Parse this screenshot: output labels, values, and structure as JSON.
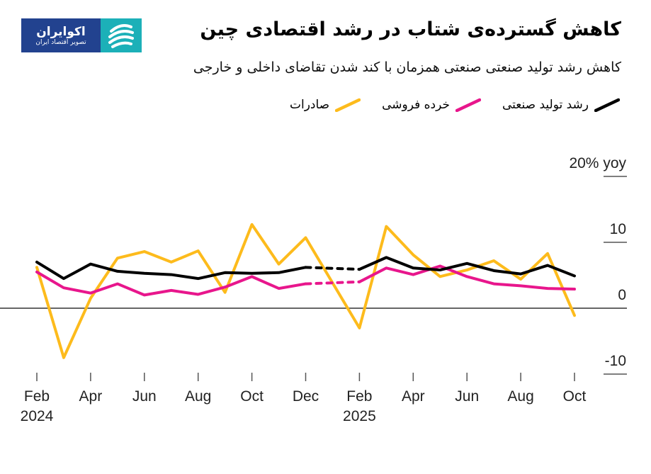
{
  "header": {
    "title": "کاهش گسترده‌ی شتاب در رشد اقتصادی چین",
    "subtitle": "کاهش رشد تولید صنعتی صنعتی همزمان با کند شدن تقاضای داخلی و خارجی"
  },
  "logo": {
    "name": "اکوایران",
    "tagline": "تصویر اقتصاد ایران"
  },
  "chart_data": {
    "type": "line",
    "ylabel": "20% yoy",
    "ylim": [
      -10,
      20
    ],
    "yticks": [
      {
        "v": 20,
        "label": "20% yoy"
      },
      {
        "v": 10,
        "label": "10"
      },
      {
        "v": 0,
        "label": "0"
      },
      {
        "v": -10,
        "label": "-10"
      }
    ],
    "x": [
      "2024-02",
      "2024-03",
      "2024-04",
      "2024-05",
      "2024-06",
      "2024-07",
      "2024-08",
      "2024-09",
      "2024-10",
      "2024-11",
      "2024-12",
      "2025-02",
      "2025-03",
      "2025-04",
      "2025-05",
      "2025-06",
      "2025-07",
      "2025-08",
      "2025-09",
      "2025-10"
    ],
    "xticks": [
      {
        "m": "2024-02",
        "label": "Feb",
        "year": "2024"
      },
      {
        "m": "2024-04",
        "label": "Apr"
      },
      {
        "m": "2024-06",
        "label": "Jun"
      },
      {
        "m": "2024-08",
        "label": "Aug"
      },
      {
        "m": "2024-10",
        "label": "Oct"
      },
      {
        "m": "2024-12",
        "label": "Dec"
      },
      {
        "m": "2025-02",
        "label": "Feb",
        "year": "2025"
      },
      {
        "m": "2025-04",
        "label": "Apr"
      },
      {
        "m": "2025-06",
        "label": "Jun"
      },
      {
        "m": "2025-08",
        "label": "Aug"
      },
      {
        "m": "2025-10",
        "label": "Oct"
      }
    ],
    "dashed_between": [
      "2024-12",
      "2025-02"
    ],
    "series": [
      {
        "name": "رشد تولید صنعتی",
        "color": "#000000",
        "values": [
          7.0,
          4.5,
          6.7,
          5.6,
          5.3,
          5.1,
          4.5,
          5.4,
          5.3,
          5.4,
          6.2,
          5.9,
          7.7,
          6.1,
          5.8,
          6.8,
          5.7,
          5.2,
          6.5,
          4.9
        ]
      },
      {
        "name": "خرده فروشی",
        "color": "#e8168c",
        "values": [
          5.5,
          3.1,
          2.3,
          3.7,
          2.0,
          2.7,
          2.1,
          3.2,
          4.8,
          3.0,
          3.7,
          4.0,
          6.1,
          5.1,
          6.4,
          4.8,
          3.7,
          3.4,
          3.0,
          2.9
        ]
      },
      {
        "name": "صادرات",
        "color": "#fdbb1c",
        "values": [
          6.2,
          -7.5,
          1.5,
          7.6,
          8.6,
          7.0,
          8.7,
          2.4,
          12.7,
          6.7,
          10.7,
          -3.0,
          12.4,
          8.1,
          4.8,
          5.8,
          7.2,
          4.4,
          8.3,
          -1.1
        ]
      }
    ]
  }
}
